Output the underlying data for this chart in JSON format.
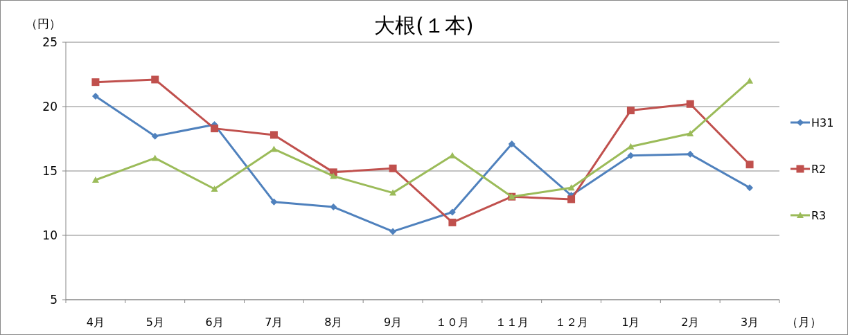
{
  "chart_data": {
    "type": "line",
    "title": "大根(１本)",
    "ylabel": "（円）",
    "xlabel": "（月）",
    "categories": [
      "4月",
      "5月",
      "6月",
      "7月",
      "8月",
      "9月",
      "１０月",
      "１１月",
      "１２月",
      "1月",
      "2月",
      "3月"
    ],
    "ylim": [
      5,
      25
    ],
    "yticks": [
      5,
      10,
      15,
      20,
      25
    ],
    "grid": "y",
    "legend": "right",
    "series": [
      {
        "name": "H31",
        "color": "#4f81bd",
        "marker": "diamond",
        "values": [
          20.8,
          17.7,
          18.6,
          12.6,
          12.2,
          10.3,
          11.8,
          17.1,
          13.1,
          16.2,
          16.3,
          13.7
        ]
      },
      {
        "name": "R2",
        "color": "#c0504d",
        "marker": "square",
        "values": [
          21.9,
          22.1,
          18.3,
          17.8,
          14.9,
          15.2,
          11.0,
          13.0,
          12.8,
          19.7,
          20.2,
          15.5
        ]
      },
      {
        "name": "R3",
        "color": "#9bbb59",
        "marker": "triangle",
        "values": [
          14.3,
          16.0,
          13.6,
          16.7,
          14.6,
          13.3,
          16.2,
          13.0,
          13.7,
          16.9,
          17.9,
          22.0
        ]
      }
    ]
  }
}
